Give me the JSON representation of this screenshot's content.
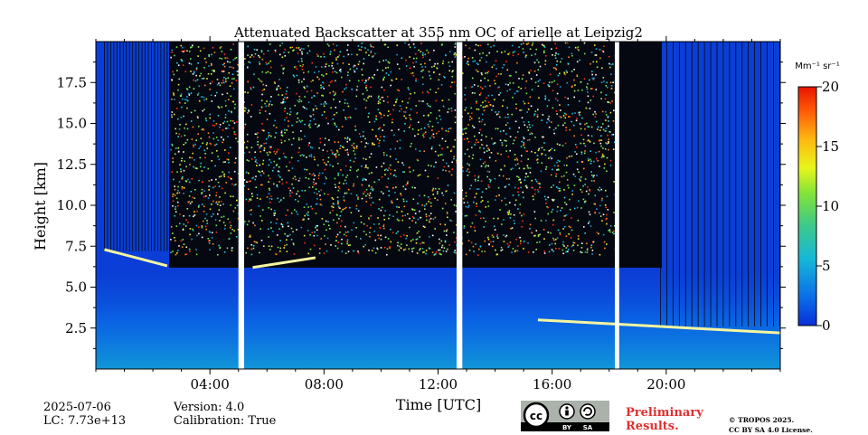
{
  "chart_data": {
    "type": "heatmap",
    "title": "Attenuated Backscatter at 355 nm OC of arielle at Leipzig2",
    "xlabel": "Time [UTC]",
    "ylabel": "Height [km]",
    "x_range": [
      0,
      24
    ],
    "y_range": [
      0,
      20
    ],
    "x_ticks": [
      "04:00",
      "08:00",
      "12:00",
      "16:00",
      "20:00"
    ],
    "x_tick_values": [
      4,
      8,
      12,
      16,
      20
    ],
    "y_ticks": [
      "2.5",
      "5.0",
      "7.5",
      "10.0",
      "12.5",
      "15.0",
      "17.5"
    ],
    "y_tick_values": [
      2.5,
      5.0,
      7.5,
      10.0,
      12.5,
      15.0,
      17.5
    ],
    "colorbar": {
      "unit": "Mm⁻¹ sr⁻¹",
      "range": [
        0,
        20
      ],
      "ticks": [
        "0",
        "5",
        "10",
        "15",
        "20"
      ],
      "tick_values": [
        0,
        5,
        10,
        15,
        20
      ],
      "colormap": "jet"
    },
    "data_gaps_hours": [
      [
        5.0,
        5.2
      ],
      [
        12.65,
        12.85
      ],
      [
        18.2,
        18.35
      ]
    ],
    "cloud_layers": [
      {
        "t": [
          0.3,
          2.5
        ],
        "h_km": [
          7.3,
          6.3
        ]
      },
      {
        "t": [
          5.5,
          7.7
        ],
        "h_km": [
          6.2,
          6.8
        ]
      },
      {
        "t": [
          15.5,
          24.0
        ],
        "h_km": [
          3.0,
          2.2
        ]
      }
    ]
  },
  "footer": {
    "date": "2025-07-06",
    "lc": "LC: 7.73e+13",
    "version": "Version: 4.0",
    "calibration": "Calibration: True",
    "preliminary_line1": "Preliminary",
    "preliminary_line2": "Results.",
    "copyright_line1": "© TROPOS 2025.",
    "copyright_line2": "CC BY SA 4.0 License.",
    "license_by": "BY",
    "license_sa": "SA"
  },
  "colors": {
    "background_blue": "#0a3ed6",
    "gap": "#ffffff",
    "text": "#000000",
    "preliminary": "#e03030"
  }
}
